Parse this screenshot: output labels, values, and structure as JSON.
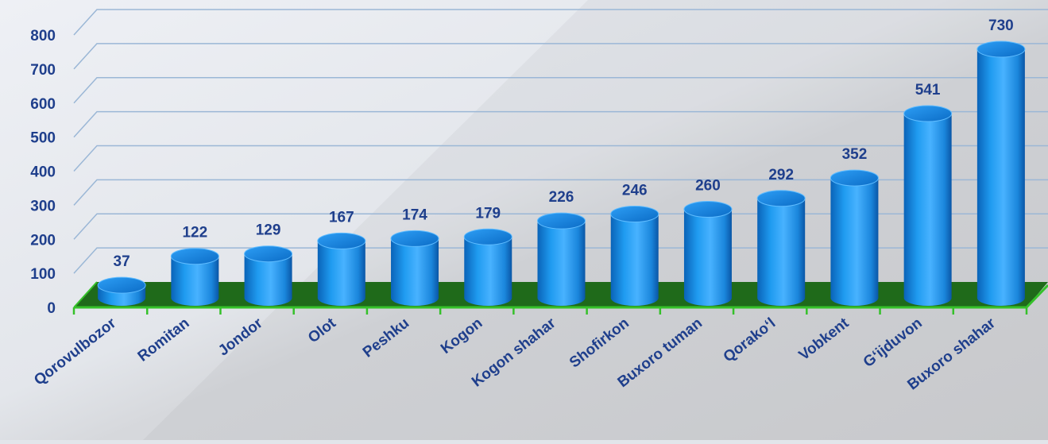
{
  "chart_data": {
    "type": "bar",
    "style": "3d-cylinder",
    "categories": [
      "Qorovulbozor",
      "Romitan",
      "Jondor",
      "Olot",
      "Peshku",
      "Kogon",
      "Kogon shahar",
      "Shofirkon",
      "Buxoro tuman",
      "Qorako‘l",
      "Vobkent",
      "G‘ijduvon",
      "Buxoro shahar"
    ],
    "values": [
      37,
      122,
      129,
      167,
      174,
      179,
      226,
      246,
      260,
      292,
      352,
      541,
      730
    ],
    "yticks": [
      "0",
      "100",
      "200",
      "300",
      "400",
      "500",
      "600",
      "700",
      "800"
    ],
    "ylim": [
      0,
      800
    ],
    "title": "",
    "xlabel": "",
    "ylabel": "",
    "grid": true,
    "legend": "none",
    "colors": {
      "bar": "#1f9bf0",
      "bar_dark": "#0a63b8",
      "bar_light": "#7cc8ff",
      "floor": "#1f6a1a",
      "floor_edge": "#35c12a",
      "label_text": "#1f3f8c",
      "grid_line": "#9bb7d6"
    }
  }
}
